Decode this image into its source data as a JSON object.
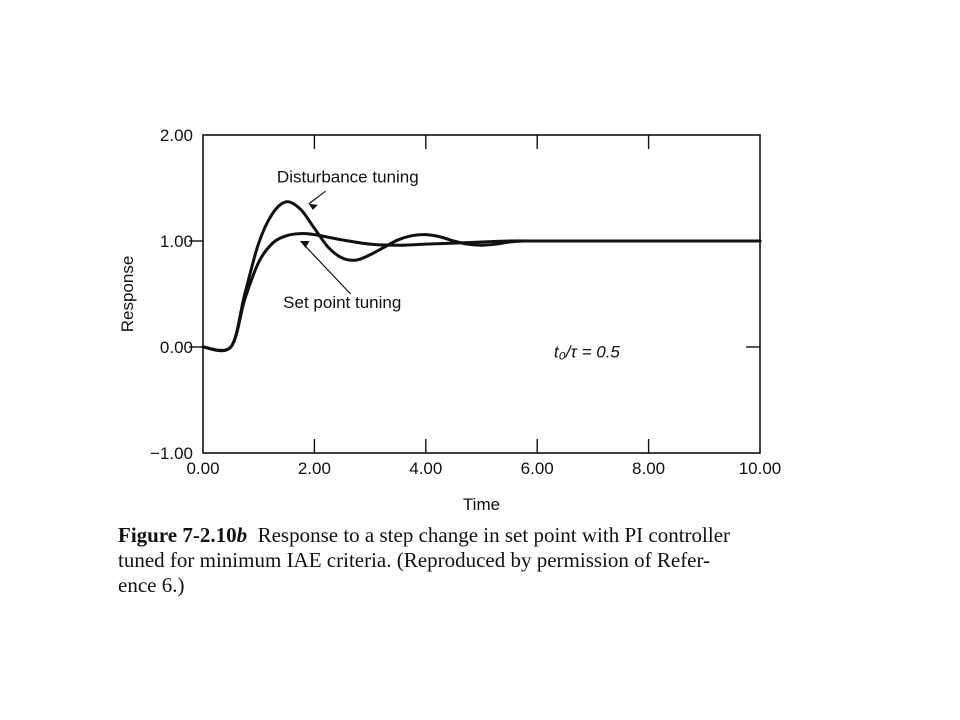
{
  "chart_data": {
    "type": "line",
    "title": "",
    "xlabel": "Time",
    "ylabel": "Response",
    "xlim": [
      0,
      10
    ],
    "ylim": [
      -1,
      2
    ],
    "x_ticks": [
      "0.00",
      "2.00",
      "4.00",
      "6.00",
      "8.00",
      "10.00"
    ],
    "y_ticks": [
      "−1.00",
      "0.00",
      "1.00",
      "2.00"
    ],
    "grid": false,
    "legend": "none",
    "annotations": [
      {
        "text": "Disturbance tuning",
        "x": 2.6,
        "y": 1.55
      },
      {
        "text": "Set point tuning",
        "x": 2.5,
        "y": 0.37
      },
      {
        "text": "t₀/τ = 0.5",
        "x": 6.3,
        "y": -0.1
      }
    ],
    "series": [
      {
        "name": "Disturbance tuning",
        "x": [
          0,
          0.5,
          0.75,
          1.0,
          1.25,
          1.5,
          1.75,
          2.0,
          2.25,
          2.5,
          2.75,
          3.0,
          3.25,
          3.5,
          3.75,
          4.0,
          4.25,
          4.5,
          4.75,
          5.0,
          5.25,
          5.5,
          5.75,
          6.0,
          7.0,
          8.0,
          9.0,
          10.0
        ],
        "y": [
          0,
          0,
          0.5,
          0.98,
          1.26,
          1.37,
          1.3,
          1.12,
          0.94,
          0.84,
          0.82,
          0.87,
          0.94,
          1.01,
          1.05,
          1.06,
          1.04,
          1.0,
          0.97,
          0.96,
          0.97,
          0.99,
          1.0,
          1.0,
          1.0,
          1.0,
          1.0,
          1.0
        ]
      },
      {
        "name": "Set point tuning",
        "x": [
          0,
          0.5,
          0.75,
          1.0,
          1.25,
          1.5,
          1.75,
          2.0,
          2.5,
          3.0,
          3.5,
          4.0,
          4.5,
          5.0,
          5.5,
          6.0,
          7.0,
          8.0,
          9.0,
          10.0
        ],
        "y": [
          0,
          0,
          0.45,
          0.8,
          0.98,
          1.05,
          1.07,
          1.06,
          1.01,
          0.97,
          0.96,
          0.97,
          0.98,
          0.99,
          1.0,
          1.0,
          1.0,
          1.0,
          1.0,
          1.0
        ]
      }
    ]
  },
  "caption": {
    "label_prefix": "Figure 7-2.10",
    "label_suffix": "b",
    "line1": "Response to a step change in set point with PI controller",
    "line2": "tuned for minimum IAE criteria. (Reproduced by permission of Refer-",
    "line3": "ence 6.)"
  },
  "colors": {
    "ink": "#111111",
    "background": "#ffffff"
  }
}
